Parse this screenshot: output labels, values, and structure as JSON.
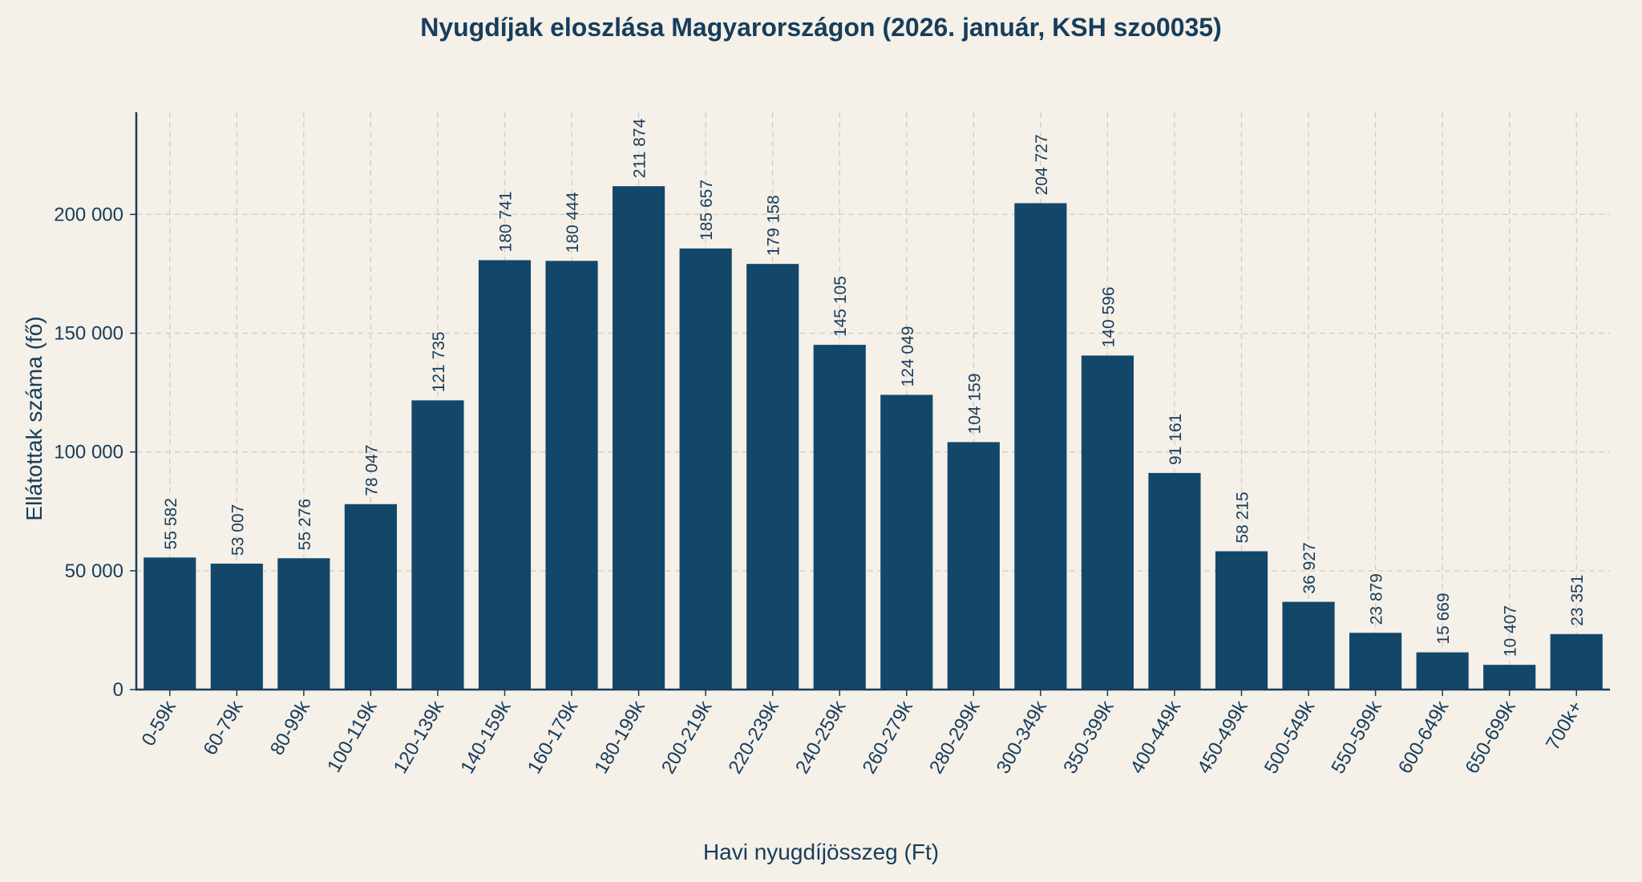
{
  "chart_data": {
    "type": "bar",
    "title": "Nyugdíjak eloszlása Magyarországon (2026. január, KSH szo0035)",
    "xlabel": "Havi nyugdíjösszeg (Ft)",
    "ylabel": "Ellátottak száma (fő)",
    "categories": [
      "0-59k",
      "60-79k",
      "80-99k",
      "100-119k",
      "120-139k",
      "140-159k",
      "160-179k",
      "180-199k",
      "200-219k",
      "220-239k",
      "240-259k",
      "260-279k",
      "280-299k",
      "300-349k",
      "350-399k",
      "400-449k",
      "450-499k",
      "500-549k",
      "550-599k",
      "600-649k",
      "650-699k",
      "700k+"
    ],
    "values": [
      55582,
      53007,
      55276,
      78047,
      121735,
      180741,
      180444,
      211874,
      185657,
      179158,
      145105,
      124049,
      104159,
      204727,
      140596,
      91161,
      58215,
      36927,
      23879,
      15669,
      10407,
      23351
    ],
    "data_labels": [
      "55 582",
      "53 007",
      "55 276",
      "78 047",
      "121 735",
      "180 741",
      "180 444",
      "211 874",
      "185 657",
      "179 158",
      "145 105",
      "124 049",
      "104 159",
      "204 727",
      "140 596",
      "91 161",
      "58 215",
      "36 927",
      "23 879",
      "15 669",
      "10 407",
      "23 351"
    ],
    "yticks": [
      0,
      50000,
      100000,
      150000,
      200000
    ],
    "ytick_labels": [
      "0",
      "50 000",
      "100 000",
      "150 000",
      "200 000"
    ],
    "ylim": [
      0,
      243000
    ],
    "grid": true,
    "legend": "none",
    "bar_color": "#13476a",
    "background_color": "#f5f0e8",
    "text_color": "#163d5c"
  }
}
